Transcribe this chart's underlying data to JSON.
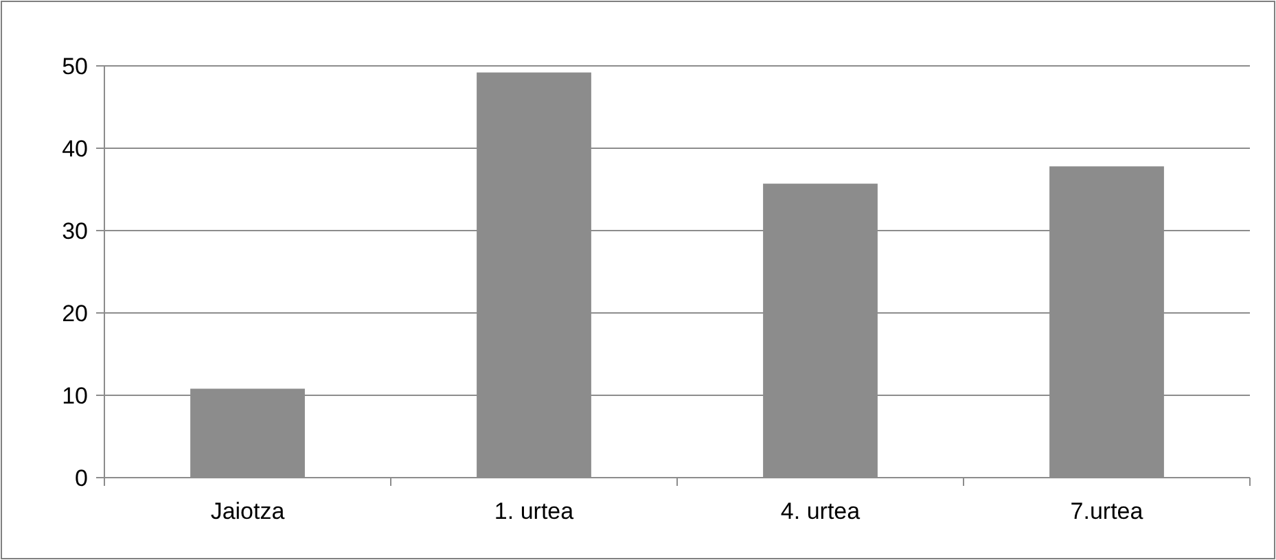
{
  "chart_data": {
    "type": "bar",
    "categories": [
      "Jaiotza",
      "1. urtea",
      "4. urtea",
      "7.urtea"
    ],
    "values": [
      10.8,
      49.2,
      35.7,
      37.8
    ],
    "color": "#8c8c8c",
    "ylim": [
      0,
      50
    ],
    "yticks": [
      0,
      10,
      20,
      30,
      40,
      50
    ],
    "grid": "y"
  }
}
